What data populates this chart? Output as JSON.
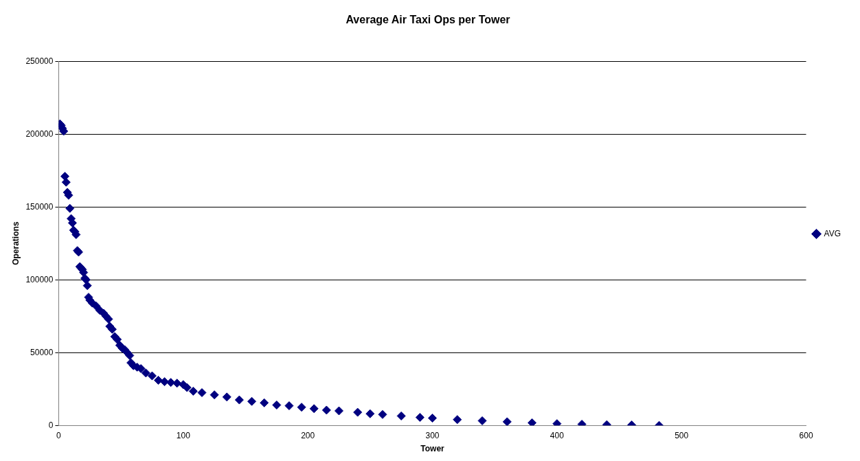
{
  "chart_data": {
    "type": "scatter",
    "title": "Average Air Taxi Ops per Tower",
    "xlabel": "Tower",
    "ylabel": "Operations",
    "x": [
      1,
      2,
      3,
      4,
      5,
      6,
      7,
      8,
      9,
      10,
      11,
      12,
      13,
      14,
      15,
      16,
      17,
      18,
      19,
      20,
      21,
      22,
      23,
      24,
      25,
      27,
      30,
      33,
      36,
      38,
      40,
      41,
      43,
      45,
      47,
      49,
      51,
      53,
      55,
      57,
      58,
      60,
      63,
      66,
      70,
      75,
      80,
      85,
      90,
      95,
      100,
      103,
      108,
      115,
      125,
      135,
      145,
      155,
      165,
      175,
      185,
      195,
      205,
      215,
      225,
      240,
      250,
      260,
      275,
      290,
      300,
      320,
      340,
      360,
      380,
      400,
      420,
      440,
      460,
      482
    ],
    "series": [
      {
        "name": "AVG",
        "color": "#000080",
        "values": [
          207000,
          206000,
          204000,
          202000,
          171000,
          167000,
          160000,
          158000,
          149000,
          142000,
          139000,
          134000,
          133000,
          131000,
          120000,
          119000,
          109000,
          108000,
          107000,
          105000,
          101000,
          100000,
          96000,
          88000,
          86000,
          84000,
          82000,
          79000,
          77000,
          75000,
          73000,
          68000,
          66000,
          61000,
          59000,
          55000,
          53000,
          52000,
          50000,
          48000,
          43000,
          41000,
          40000,
          39000,
          36000,
          34000,
          31000,
          30000,
          29500,
          29000,
          28000,
          26000,
          23500,
          22500,
          21000,
          19500,
          17500,
          16500,
          15500,
          14000,
          13500,
          12500,
          11500,
          10500,
          10000,
          9000,
          8000,
          7500,
          6500,
          5500,
          5000,
          4000,
          3200,
          2500,
          1800,
          1200,
          800,
          500,
          300,
          0
        ]
      }
    ],
    "xlim": [
      0,
      600
    ],
    "xticks": [
      0,
      100,
      200,
      300,
      400,
      500,
      600
    ],
    "ylim": [
      0,
      250000
    ],
    "yticks": [
      0,
      50000,
      100000,
      150000,
      200000,
      250000
    ],
    "grid": "y",
    "legend": "right",
    "marker": "diamond"
  }
}
